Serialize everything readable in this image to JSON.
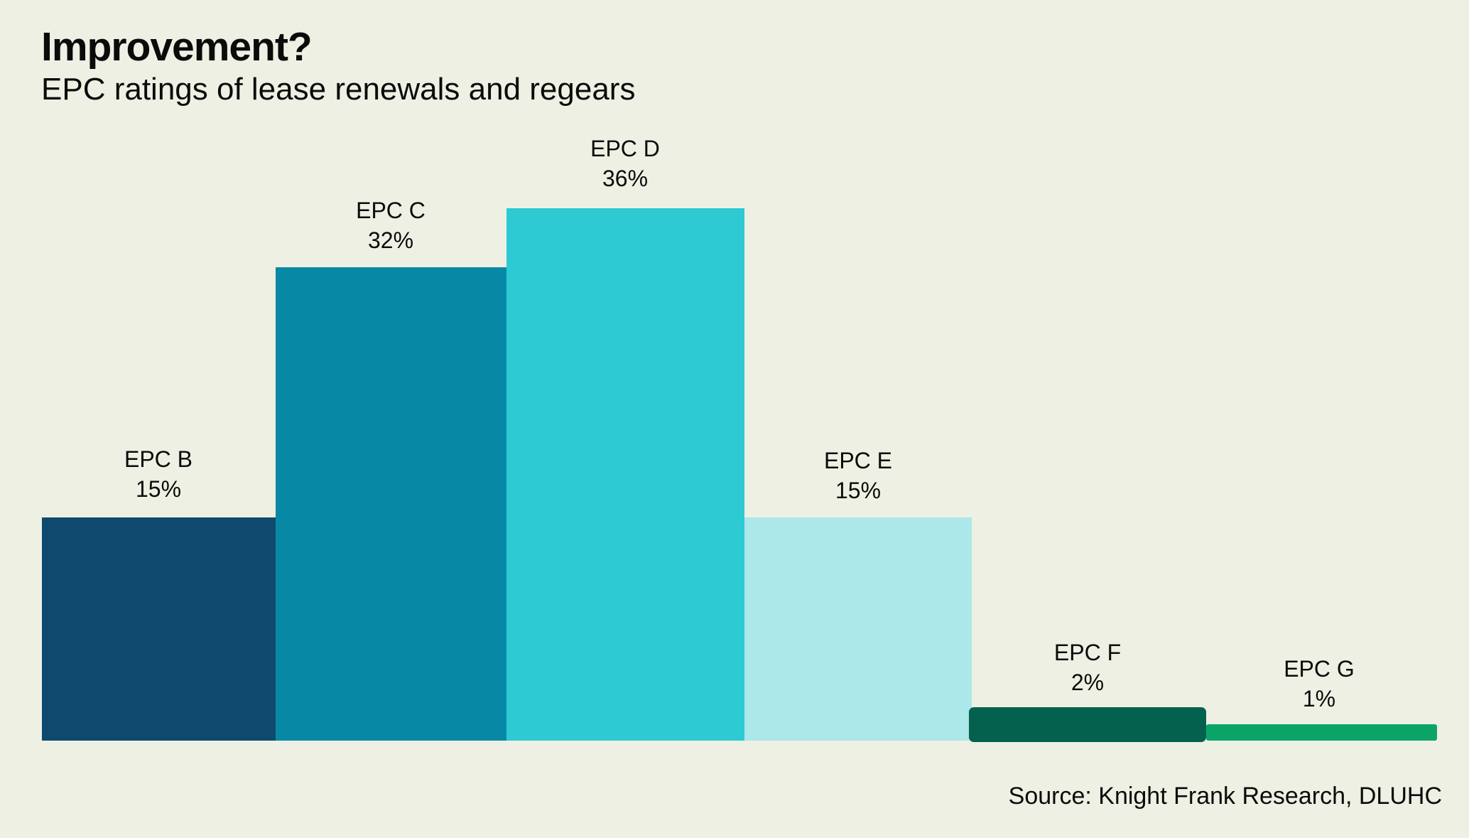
{
  "header": {
    "title": "Improvement?",
    "subtitle": "EPC ratings of lease renewals and regears"
  },
  "source_note": "Source: Knight Frank Research, DLUHC",
  "colors": {
    "background": "#EEF0E3",
    "text": "#0B0B0B"
  },
  "bars": [
    {
      "label": "EPC B",
      "pct": "15%",
      "color": "#0E4A6E"
    },
    {
      "label": "EPC C",
      "pct": "32%",
      "color": "#0789A6"
    },
    {
      "label": "EPC D",
      "pct": "36%",
      "color": "#2DCAD3"
    },
    {
      "label": "EPC E",
      "pct": "15%",
      "color": "#ACE7E9"
    },
    {
      "label": "EPC F",
      "pct": "2%",
      "color": "#03614E"
    },
    {
      "label": "EPC G",
      "pct": "1%",
      "color": "#0AA469"
    }
  ],
  "chart_data": {
    "type": "bar",
    "categories": [
      "EPC B",
      "EPC C",
      "EPC D",
      "EPC E",
      "EPC F",
      "EPC G"
    ],
    "values": [
      15,
      32,
      36,
      15,
      2,
      1
    ],
    "unit": "%",
    "title": "Improvement?",
    "subtitle": "EPC ratings of lease renewals and regears",
    "source": "Source: Knight Frank Research, DLUHC",
    "series_colors": [
      "#0E4A6E",
      "#0789A6",
      "#2DCAD3",
      "#ACE7E9",
      "#03614E",
      "#0AA469"
    ],
    "ylim": [
      0,
      36
    ],
    "grid": false,
    "axes_visible": false,
    "legend": "none",
    "data_labels": "category name and percentage shown above each bar"
  }
}
